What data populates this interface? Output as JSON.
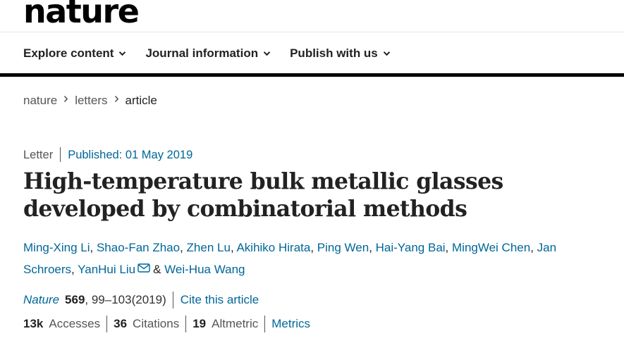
{
  "header": {
    "logo": "nature",
    "nav": [
      {
        "label": "Explore content",
        "icon": "chevron-down-icon"
      },
      {
        "label": "Journal information",
        "icon": "chevron-down-icon"
      },
      {
        "label": "Publish with us",
        "icon": "chevron-down-icon"
      }
    ]
  },
  "breadcrumb": [
    "nature",
    "letters",
    "article"
  ],
  "article": {
    "type": "Letter",
    "published": "Published: 01 May 2019",
    "title": "High-temperature bulk metallic glasses developed by combinatorial methods",
    "authors": [
      "Ming-Xing Li",
      "Shao-Fan Zhao",
      "Zhen Lu",
      "Akihiko Hirata",
      "Ping Wen",
      "Hai-Yang Bai",
      "MingWei Chen",
      "Jan Schroers",
      "YanHui Liu",
      "Wei-Hua Wang"
    ],
    "author_sep": ", ",
    "last_sep": "&",
    "corresponding_icon": "envelope-icon",
    "citation": {
      "journal": "Nature",
      "volume": "569",
      "pages": ", 99–103",
      "year": "(2019)",
      "cite_link": "Cite this article"
    },
    "metrics": {
      "accesses_count": "13k",
      "accesses_label": "Accesses",
      "citations_count": "36",
      "citations_label": "Citations",
      "altmetric_count": "19",
      "altmetric_label": "Altmetric",
      "metrics_link": "Metrics"
    }
  },
  "colors": {
    "link": "#006699",
    "text": "#222222",
    "muted": "#555555",
    "rule": "#000000"
  }
}
